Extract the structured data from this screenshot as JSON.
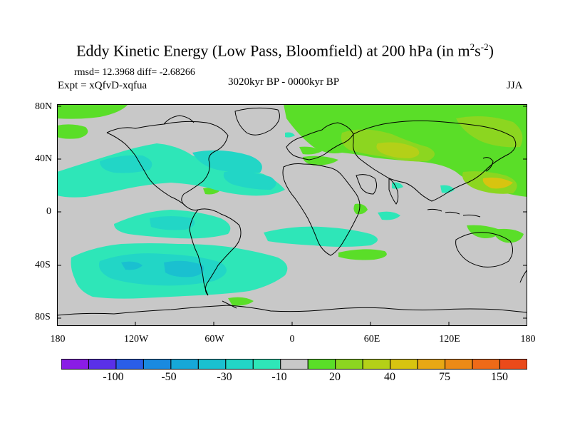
{
  "title": {
    "main": "Eddy Kinetic Energy (Low Pass, Bloomfield) at 200 hPa (in m",
    "sup1": "2",
    "mid": "s",
    "sup2": "-2",
    "close": ")"
  },
  "stats": {
    "rmsd_diff": "rmsd= 12.3968 diff= -2.68266",
    "expt": "Expt = xQfvD-xqfua",
    "period": "3020kyr BP - 0000kyr BP",
    "season": "JJA"
  },
  "map": {
    "lat_ticks": [
      "80N",
      "40N",
      "0",
      "40S",
      "80S"
    ],
    "lon_ticks": [
      "180",
      "120W",
      "60W",
      "0",
      "60E",
      "120E",
      "180"
    ]
  },
  "colorbar": {
    "labels": [
      "-100",
      "-50",
      "-30",
      "-10",
      "20",
      "40",
      "75",
      "150"
    ],
    "colors": [
      "#8a1ce6",
      "#5a30e8",
      "#2a5ee8",
      "#1a8ae0",
      "#16a8d8",
      "#1ac0d0",
      "#22d6c6",
      "#2ee6b8",
      "#c8c8c8",
      "#5ade28",
      "#8cd620",
      "#b4d018",
      "#d8c410",
      "#e8a814",
      "#ec8a16",
      "#ee6a18",
      "#ea4a1a"
    ]
  },
  "colors": {
    "background": "#c8c8c8",
    "neg_light": "#2ee6b8",
    "neg_mid": "#22d6c6",
    "neg_strong": "#1ac0d0",
    "pos_light": "#5ade28",
    "pos_mid": "#8cd620",
    "pos_yellow": "#d8c410",
    "pos_orange": "#e8a814",
    "coast": "#000000"
  }
}
